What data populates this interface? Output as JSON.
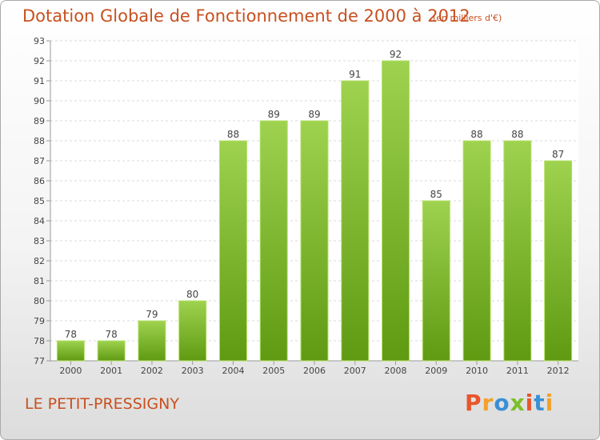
{
  "header": {
    "title": "Dotation Globale de Fonctionnement de 2000 à 2012",
    "unit": "(en milliers d'€)"
  },
  "footer": {
    "commune": "LE PETIT-PRESSIGNY",
    "logo_text": "Proxiti"
  },
  "colors": {
    "title": "#c8501f",
    "bar_top": "#9ed24f",
    "bar_bottom": "#5f9a12",
    "bar_border": "#b6e06a",
    "logo": [
      "#e8562a",
      "#f2a12a",
      "#3a8fd6",
      "#7bbf2a",
      "#e8562a",
      "#3a8fd6",
      "#f2a12a"
    ]
  },
  "chart_data": {
    "type": "bar",
    "title": "Dotation Globale de Fonctionnement de 2000 à 2012",
    "subtitle": "(en milliers d'€)",
    "categories": [
      "2000",
      "2001",
      "2002",
      "2003",
      "2004",
      "2005",
      "2006",
      "2007",
      "2008",
      "2009",
      "2010",
      "2011",
      "2012"
    ],
    "values": [
      78,
      78,
      79,
      80,
      88,
      89,
      89,
      91,
      92,
      85,
      88,
      88,
      87
    ],
    "ylim": [
      77,
      93
    ],
    "yticks": [
      77,
      78,
      79,
      80,
      81,
      82,
      83,
      84,
      85,
      86,
      87,
      88,
      89,
      90,
      91,
      92,
      93
    ],
    "grid": true,
    "legend": "none"
  }
}
